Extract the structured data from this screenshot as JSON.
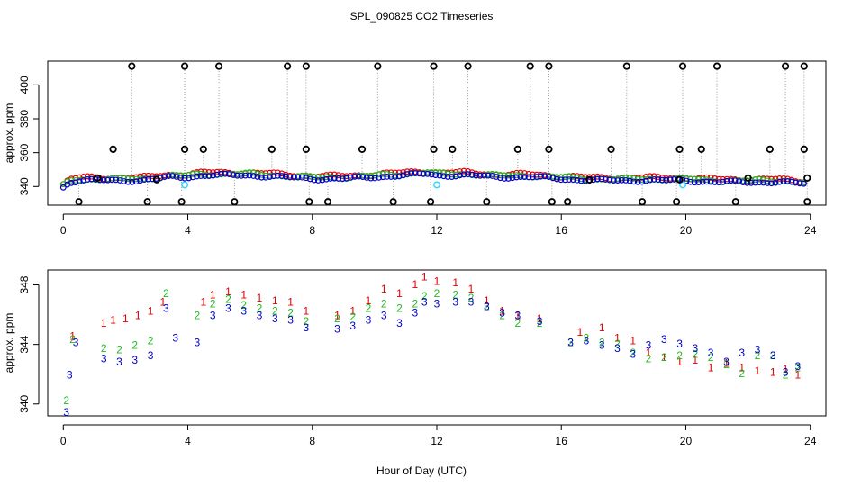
{
  "title": "SPL_090825  CO2 Timeseries",
  "colors": {
    "series1": "#e00000",
    "series2": "#22bb22",
    "series3": "#0000cc",
    "outlier": "#000000",
    "cyan": "#33d6ff",
    "dotted": "#9a9a9a"
  },
  "chart_data": [
    {
      "type": "scatter",
      "panel": "top",
      "xlabel": "",
      "ylabel": "approx. ppm",
      "xlim": [
        -0.5,
        24.5
      ],
      "ylim": [
        329,
        414
      ],
      "xticks": [
        0,
        4,
        8,
        12,
        16,
        20,
        24
      ],
      "yticks": [
        340,
        360,
        380,
        400
      ],
      "baseline": [
        [
          0.0,
          340
        ],
        [
          0.2,
          343
        ],
        [
          0.5,
          344
        ],
        [
          1.0,
          344
        ],
        [
          1.5,
          344
        ],
        [
          2.0,
          344
        ],
        [
          2.5,
          344
        ],
        [
          3.0,
          345
        ],
        [
          3.5,
          346
        ],
        [
          4.0,
          346
        ],
        [
          4.5,
          347
        ],
        [
          5.0,
          347
        ],
        [
          6.0,
          347
        ],
        [
          7.0,
          346
        ],
        [
          8.0,
          345
        ],
        [
          9.0,
          345
        ],
        [
          10.0,
          346
        ],
        [
          11.0,
          347
        ],
        [
          11.7,
          348
        ],
        [
          12.0,
          347
        ],
        [
          13.0,
          347
        ],
        [
          14.0,
          346
        ],
        [
          15.0,
          346
        ],
        [
          16.0,
          345
        ],
        [
          17.0,
          344
        ],
        [
          18.0,
          344
        ],
        [
          19.0,
          344
        ],
        [
          20.0,
          344
        ],
        [
          21.0,
          343
        ],
        [
          22.0,
          343
        ],
        [
          23.0,
          343
        ],
        [
          23.8,
          342
        ]
      ],
      "series": [
        {
          "name": "1",
          "color": "#e00000",
          "offset": 1.2
        },
        {
          "name": "2",
          "color": "#22bb22",
          "offset": 0.4
        },
        {
          "name": "3",
          "color": "#0000cc",
          "offset": -0.4
        }
      ],
      "outliers": [
        [
          0.5,
          331
        ],
        [
          1.1,
          345
        ],
        [
          1.6,
          362
        ],
        [
          2.2,
          411
        ],
        [
          2.7,
          331
        ],
        [
          3.0,
          344
        ],
        [
          3.8,
          331
        ],
        [
          3.9,
          362
        ],
        [
          3.9,
          411
        ],
        [
          4.5,
          362
        ],
        [
          5.0,
          411
        ],
        [
          5.5,
          331
        ],
        [
          6.7,
          362
        ],
        [
          7.2,
          411
        ],
        [
          7.8,
          411
        ],
        [
          7.8,
          362
        ],
        [
          7.9,
          331
        ],
        [
          8.5,
          331
        ],
        [
          9.6,
          362
        ],
        [
          10.1,
          411
        ],
        [
          10.6,
          331
        ],
        [
          11.8,
          331
        ],
        [
          11.9,
          411
        ],
        [
          11.9,
          362
        ],
        [
          12.5,
          362
        ],
        [
          13.0,
          411
        ],
        [
          13.6,
          331
        ],
        [
          14.6,
          362
        ],
        [
          15.0,
          411
        ],
        [
          15.6,
          411
        ],
        [
          15.6,
          362
        ],
        [
          15.7,
          331
        ],
        [
          16.2,
          331
        ],
        [
          16.9,
          344
        ],
        [
          17.6,
          362
        ],
        [
          18.1,
          411
        ],
        [
          18.6,
          331
        ],
        [
          19.7,
          331
        ],
        [
          19.8,
          362
        ],
        [
          19.8,
          344
        ],
        [
          19.9,
          411
        ],
        [
          20.5,
          362
        ],
        [
          21.0,
          411
        ],
        [
          21.6,
          331
        ],
        [
          22.0,
          345
        ],
        [
          22.7,
          362
        ],
        [
          23.2,
          411
        ],
        [
          23.8,
          411
        ],
        [
          23.8,
          362
        ],
        [
          23.9,
          345
        ],
        [
          23.9,
          331
        ]
      ],
      "cyan_points": [
        [
          3.9,
          341
        ],
        [
          12.0,
          341
        ],
        [
          19.9,
          341
        ]
      ]
    },
    {
      "type": "scatter",
      "panel": "bottom",
      "xlabel": "Hour of Day (UTC)",
      "ylabel": "approx. ppm",
      "xlim": [
        -0.5,
        24.5
      ],
      "ylim": [
        339.2,
        349.0
      ],
      "xticks": [
        0,
        4,
        8,
        12,
        16,
        20,
        24
      ],
      "yticks": [
        340,
        344,
        348
      ],
      "markers": [
        "1",
        "2",
        "3"
      ],
      "series": [
        {
          "name": "1",
          "color": "#e00000",
          "points": [
            [
              0.3,
              344.6
            ],
            [
              1.3,
              345.5
            ],
            [
              1.6,
              345.7
            ],
            [
              2.0,
              345.8
            ],
            [
              2.4,
              346.0
            ],
            [
              2.8,
              346.3
            ],
            [
              3.2,
              346.9
            ],
            [
              4.5,
              346.9
            ],
            [
              4.8,
              347.4
            ],
            [
              5.3,
              347.6
            ],
            [
              5.8,
              347.4
            ],
            [
              6.3,
              347.2
            ],
            [
              6.8,
              347.0
            ],
            [
              7.3,
              346.9
            ],
            [
              7.8,
              346.3
            ],
            [
              8.8,
              346.0
            ],
            [
              9.3,
              346.3
            ],
            [
              9.8,
              347.0
            ],
            [
              10.3,
              347.8
            ],
            [
              10.8,
              347.5
            ],
            [
              11.3,
              348.1
            ],
            [
              11.6,
              348.6
            ],
            [
              12.0,
              348.3
            ],
            [
              12.6,
              348.2
            ],
            [
              13.1,
              347.8
            ],
            [
              13.6,
              347.0
            ],
            [
              14.1,
              346.3
            ],
            [
              14.6,
              346.0
            ],
            [
              15.3,
              345.8
            ],
            [
              16.6,
              344.9
            ],
            [
              17.3,
              345.2
            ],
            [
              17.8,
              344.5
            ],
            [
              18.3,
              344.3
            ],
            [
              18.8,
              343.5
            ],
            [
              19.3,
              343.2
            ],
            [
              19.8,
              342.9
            ],
            [
              20.3,
              343.0
            ],
            [
              20.8,
              342.5
            ],
            [
              21.3,
              342.8
            ],
            [
              21.8,
              342.5
            ],
            [
              22.3,
              342.3
            ],
            [
              22.8,
              342.2
            ],
            [
              23.2,
              342.4
            ],
            [
              23.6,
              342.0
            ]
          ]
        },
        {
          "name": "2",
          "color": "#22bb22",
          "points": [
            [
              0.1,
              340.3
            ],
            [
              0.3,
              344.4
            ],
            [
              1.3,
              343.8
            ],
            [
              1.8,
              343.7
            ],
            [
              2.3,
              344.0
            ],
            [
              2.8,
              344.3
            ],
            [
              3.3,
              347.5
            ],
            [
              4.3,
              346.0
            ],
            [
              4.8,
              346.8
            ],
            [
              5.3,
              347.1
            ],
            [
              5.8,
              346.7
            ],
            [
              6.3,
              346.5
            ],
            [
              6.8,
              346.3
            ],
            [
              7.3,
              346.2
            ],
            [
              7.8,
              345.6
            ],
            [
              8.8,
              345.8
            ],
            [
              9.3,
              345.9
            ],
            [
              9.8,
              346.5
            ],
            [
              10.3,
              346.8
            ],
            [
              10.8,
              346.5
            ],
            [
              11.3,
              346.8
            ],
            [
              11.6,
              347.3
            ],
            [
              12.0,
              347.5
            ],
            [
              12.6,
              347.4
            ],
            [
              13.1,
              347.2
            ],
            [
              13.6,
              346.6
            ],
            [
              14.1,
              346.0
            ],
            [
              14.6,
              345.5
            ],
            [
              15.3,
              345.5
            ],
            [
              16.3,
              344.2
            ],
            [
              16.8,
              344.5
            ],
            [
              17.3,
              344.2
            ],
            [
              17.8,
              344.1
            ],
            [
              18.3,
              343.5
            ],
            [
              18.8,
              343.1
            ],
            [
              19.3,
              343.2
            ],
            [
              19.8,
              343.3
            ],
            [
              20.3,
              343.4
            ],
            [
              20.8,
              343.2
            ],
            [
              21.3,
              342.7
            ],
            [
              21.8,
              342.1
            ],
            [
              22.3,
              343.3
            ],
            [
              22.8,
              343.3
            ],
            [
              23.2,
              342.0
            ],
            [
              23.6,
              342.5
            ]
          ]
        },
        {
          "name": "3",
          "color": "#0000cc",
          "points": [
            [
              0.1,
              339.5
            ],
            [
              0.2,
              342.0
            ],
            [
              0.4,
              344.2
            ],
            [
              1.3,
              343.1
            ],
            [
              1.8,
              342.9
            ],
            [
              2.3,
              343.0
            ],
            [
              2.8,
              343.3
            ],
            [
              3.3,
              346.5
            ],
            [
              3.6,
              344.5
            ],
            [
              4.3,
              344.2
            ],
            [
              4.8,
              346.0
            ],
            [
              5.3,
              346.5
            ],
            [
              5.8,
              346.3
            ],
            [
              6.3,
              346.0
            ],
            [
              6.8,
              345.8
            ],
            [
              7.3,
              345.7
            ],
            [
              7.8,
              345.2
            ],
            [
              8.8,
              345.1
            ],
            [
              9.3,
              345.3
            ],
            [
              9.8,
              345.7
            ],
            [
              10.3,
              346.0
            ],
            [
              10.8,
              345.5
            ],
            [
              11.3,
              346.2
            ],
            [
              11.6,
              346.9
            ],
            [
              12.0,
              346.8
            ],
            [
              12.6,
              346.9
            ],
            [
              13.1,
              346.9
            ],
            [
              13.6,
              346.6
            ],
            [
              14.1,
              346.2
            ],
            [
              14.6,
              346.0
            ],
            [
              15.3,
              345.6
            ],
            [
              16.3,
              344.2
            ],
            [
              16.8,
              344.3
            ],
            [
              17.3,
              344.0
            ],
            [
              17.8,
              343.8
            ],
            [
              18.3,
              343.4
            ],
            [
              18.8,
              344.0
            ],
            [
              19.3,
              344.4
            ],
            [
              19.8,
              344.1
            ],
            [
              20.3,
              343.8
            ],
            [
              20.8,
              343.5
            ],
            [
              21.3,
              342.9
            ],
            [
              21.8,
              343.5
            ],
            [
              22.3,
              343.7
            ],
            [
              22.8,
              343.3
            ],
            [
              23.2,
              342.2
            ],
            [
              23.6,
              342.6
            ]
          ]
        }
      ]
    }
  ]
}
